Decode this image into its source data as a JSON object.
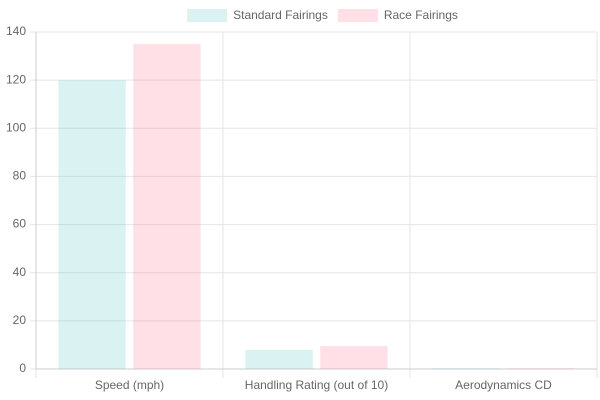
{
  "chart_data": {
    "type": "bar",
    "categories": [
      "Speed (mph)",
      "Handling Rating (out of 10)",
      "Aerodynamics CD"
    ],
    "series": [
      {
        "name": "Standard Fairings",
        "color": "rgba(75,192,192,0.2)",
        "values": [
          120,
          8,
          0.32
        ]
      },
      {
        "name": "Race Fairings",
        "color": "rgba(255,99,132,0.2)",
        "values": [
          135,
          9.5,
          0.28
        ]
      }
    ],
    "ylim": [
      0,
      140
    ],
    "yticks": [
      0,
      20,
      40,
      60,
      80,
      100,
      120,
      140
    ],
    "grid": true,
    "legend": "top"
  }
}
